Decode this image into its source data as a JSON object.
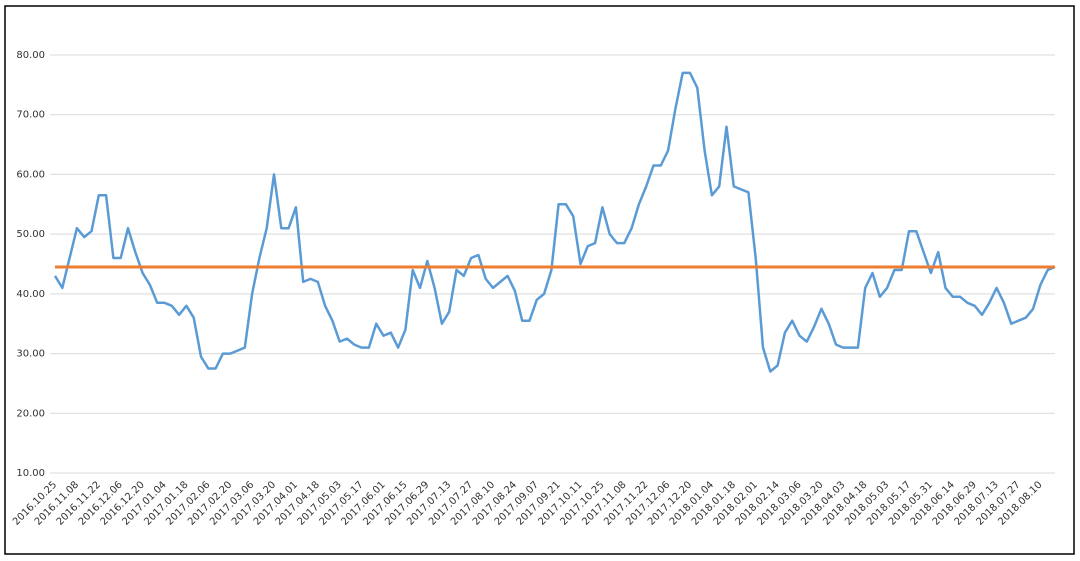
{
  "chart_data": {
    "type": "line",
    "categories": [
      "2016.10.25",
      null,
      null,
      "2016.11.08",
      null,
      null,
      "2016.11.22",
      null,
      null,
      "2016.12.06",
      null,
      null,
      "2016.12.20",
      null,
      null,
      "2017.01.04",
      null,
      null,
      "2017.01.18",
      null,
      null,
      "2017.02.06",
      null,
      null,
      "2017.02.20",
      null,
      null,
      "2017.03.06",
      null,
      null,
      "2017.03.20",
      null,
      null,
      "2017.04.01",
      null,
      null,
      "2017.04.18",
      null,
      null,
      "2017.05.03",
      null,
      null,
      "2017.05.17",
      null,
      null,
      "2017.06.01",
      null,
      null,
      "2017.06.15",
      null,
      null,
      "2017.06.29",
      null,
      null,
      "2017.07.13",
      null,
      null,
      "2017.07.27",
      null,
      null,
      "2017.08.10",
      null,
      null,
      "2017.08.24",
      null,
      null,
      "2017.09.07",
      null,
      null,
      "2017.09.21",
      null,
      null,
      "2017.10.11",
      null,
      null,
      "2017.10.25",
      null,
      null,
      "2017.11.08",
      null,
      null,
      "2017.11.22",
      null,
      null,
      "2017.12.06",
      null,
      null,
      "2017.12.20",
      null,
      null,
      "2018.01.04",
      null,
      null,
      "2018.01.18",
      null,
      null,
      "2018.02.01",
      null,
      null,
      "2018.02.14",
      null,
      null,
      "2018.03.06",
      null,
      null,
      "2018.03.20",
      null,
      null,
      "2018.04.03",
      null,
      null,
      "2018.04.18",
      null,
      null,
      "2018.05.03",
      null,
      null,
      "2018.05.17",
      null,
      null,
      "2018.05.31",
      null,
      null,
      "2018.06.14",
      null,
      null,
      "2018.06.29",
      null,
      null,
      "2018.07.13",
      null,
      null,
      "2018.07.27",
      null,
      null,
      "2018.08.10",
      null,
      null
    ],
    "series": [
      {
        "color": "#5b9bd5",
        "values": [
          43,
          41,
          46,
          51,
          49.5,
          50.5,
          56.5,
          56.5,
          46,
          46,
          51,
          47,
          43.5,
          41.5,
          38.5,
          38.5,
          38,
          36.5,
          38,
          36,
          29.5,
          27.5,
          27.5,
          30,
          30,
          30.5,
          31,
          40,
          46,
          51,
          60,
          51,
          51,
          54.5,
          42,
          42.5,
          42,
          38,
          35.5,
          32,
          32.5,
          31.5,
          31,
          31,
          35,
          33,
          33.5,
          31,
          34,
          44,
          41,
          45.5,
          41,
          35,
          37,
          44,
          43,
          46,
          46.5,
          42.5,
          41,
          42,
          43,
          40.5,
          35.5,
          35.5,
          39,
          40,
          44,
          55,
          55,
          53,
          45,
          48,
          48.5,
          54.5,
          50,
          48.5,
          48.5,
          51,
          55,
          58,
          61.5,
          61.5,
          64,
          71,
          77,
          77,
          74.5,
          64,
          56.5,
          58,
          68,
          58,
          57.5,
          57,
          46,
          31,
          27,
          28,
          33.5,
          35.5,
          33,
          32,
          34.5,
          37.5,
          35,
          31.5,
          31,
          31,
          31,
          41,
          43.5,
          39.5,
          41,
          44,
          44,
          50.5,
          50.5,
          47,
          43.5,
          47,
          41,
          39.5,
          39.5,
          38.5,
          38,
          36.5,
          38.5,
          41,
          38.5,
          35,
          35.5,
          36,
          37.5,
          41.5,
          44,
          44.5
        ]
      }
    ],
    "hline": {
      "value": 44.5,
      "color": "#ed7d31"
    },
    "ylim": [
      10,
      80
    ],
    "yticks": [
      {
        "value": 10,
        "label": "10.00"
      },
      {
        "value": 20,
        "label": "20.00"
      },
      {
        "value": 30,
        "label": "30.00"
      },
      {
        "value": 40,
        "label": "40.00"
      },
      {
        "value": 50,
        "label": "50.00"
      },
      {
        "value": 60,
        "label": "60.00"
      },
      {
        "value": 70,
        "label": "70.00"
      },
      {
        "value": 80,
        "label": "80.00"
      }
    ],
    "grid": true
  }
}
